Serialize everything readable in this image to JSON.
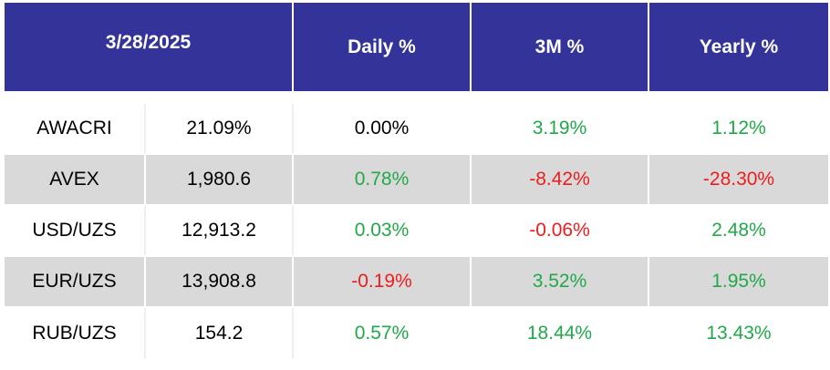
{
  "header": {
    "date": "3/28/2025",
    "daily": "Daily %",
    "three_month": "3M %",
    "yearly": "Yearly %"
  },
  "colors": {
    "header_bg": "#333399",
    "positive": "#22a84a",
    "negative": "#ee1c1c",
    "row_alt": "#d9d9d9"
  },
  "rows": [
    {
      "name": "AWACRI",
      "value": "21.09%",
      "daily": "0.00%",
      "daily_sign": "neu",
      "three_month": "3.19%",
      "three_month_sign": "pos",
      "yearly": "1.12%",
      "yearly_sign": "pos"
    },
    {
      "name": "AVEX",
      "value": "1,980.6",
      "daily": "0.78%",
      "daily_sign": "pos",
      "three_month": "-8.42%",
      "three_month_sign": "neg",
      "yearly": "-28.30%",
      "yearly_sign": "neg"
    },
    {
      "name": "USD/UZS",
      "value": "12,913.2",
      "daily": "0.03%",
      "daily_sign": "pos",
      "three_month": "-0.06%",
      "three_month_sign": "neg",
      "yearly": "2.48%",
      "yearly_sign": "pos"
    },
    {
      "name": "EUR/UZS",
      "value": "13,908.8",
      "daily": "-0.19%",
      "daily_sign": "neg",
      "three_month": "3.52%",
      "three_month_sign": "pos",
      "yearly": "1.95%",
      "yearly_sign": "pos"
    },
    {
      "name": "RUB/UZS",
      "value": "154.2",
      "daily": "0.57%",
      "daily_sign": "pos",
      "three_month": "18.44%",
      "three_month_sign": "pos",
      "yearly": "13.43%",
      "yearly_sign": "pos"
    }
  ]
}
